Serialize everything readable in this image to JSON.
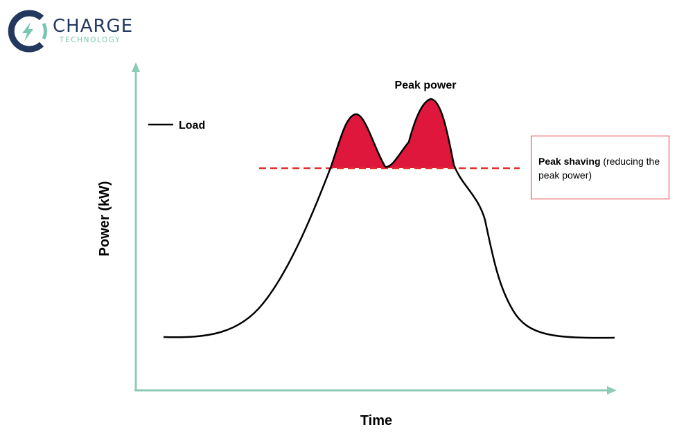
{
  "logo": {
    "word": "CHARGE",
    "sub": "TECHNOLOGY",
    "icon": "bolt-ring-icon",
    "colors": {
      "navy": "#23385f",
      "mint": "#78c6b1"
    }
  },
  "axes": {
    "y_label": "Power (kW)",
    "x_label": "Time",
    "color": "#8ccbb5"
  },
  "legend": {
    "label": "Load",
    "line_color": "#000000"
  },
  "annotations": {
    "peak_label": "Peak power",
    "callout_bold": "Peak shaving",
    "callout_rest": " (reducing the peak power)"
  },
  "colors": {
    "shaved_fill": "#e0173d",
    "threshold_line": "#e0312f",
    "callout_border": "#e0312f"
  }
}
